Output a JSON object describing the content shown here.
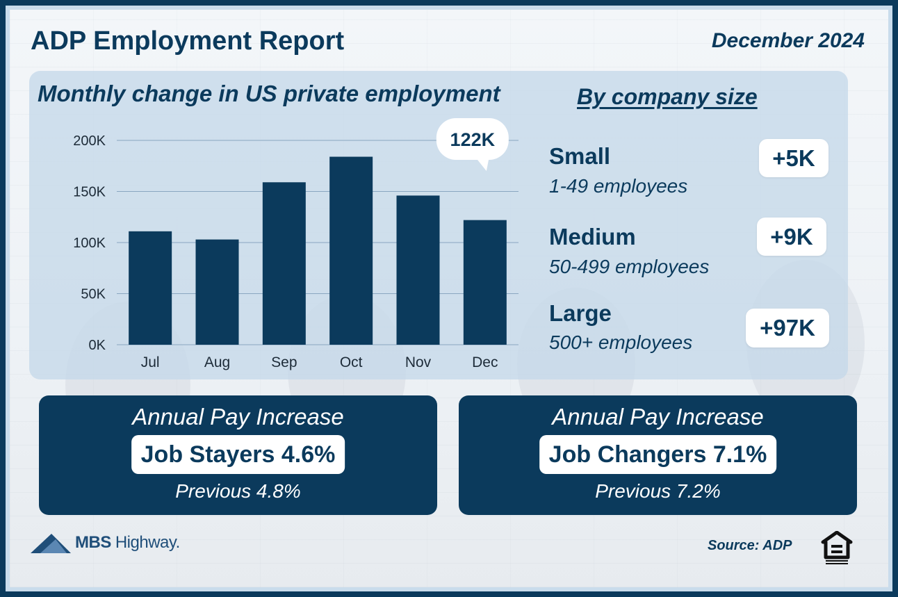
{
  "header": {
    "title": "ADP Employment Report",
    "date": "December 2024"
  },
  "chart_data": {
    "type": "bar",
    "title": "Monthly change in US private employment",
    "categories": [
      "Jul",
      "Aug",
      "Sep",
      "Oct",
      "Nov",
      "Dec"
    ],
    "values": [
      111000,
      103000,
      159000,
      184000,
      146000,
      122000
    ],
    "ylim": [
      0,
      200000
    ],
    "yticks": [
      0,
      50000,
      100000,
      150000,
      200000
    ],
    "ytick_labels": [
      "0K",
      "50K",
      "100K",
      "150K",
      "200K"
    ],
    "grid": true,
    "callout": {
      "category": "Dec",
      "label": "122K"
    },
    "bar_color": "#0b3a5c"
  },
  "company_size": {
    "title": "By company size",
    "groups": [
      {
        "name": "Small",
        "range": "1-49 employees",
        "change": "+5K"
      },
      {
        "name": "Medium",
        "range": "50-499 employees",
        "change": "+9K"
      },
      {
        "name": "Large",
        "range": "500+ employees",
        "change": "+97K"
      }
    ]
  },
  "pay": {
    "stayers": {
      "heading": "Annual Pay Increase",
      "value": "Job Stayers 4.6%",
      "previous": "Previous 4.8%"
    },
    "changers": {
      "heading": "Annual Pay Increase",
      "value": "Job Changers 7.1%",
      "previous": "Previous 7.2%"
    }
  },
  "footer": {
    "logo_bold": "MBS",
    "logo_rest": "Highway.",
    "source": "Source: ADP",
    "logo_icon": "mountain-icon",
    "housing_icon": "equal-housing-icon"
  },
  "colors": {
    "navy": "#0b3a5c",
    "panel": "#c5d8e9",
    "white": "#ffffff"
  }
}
